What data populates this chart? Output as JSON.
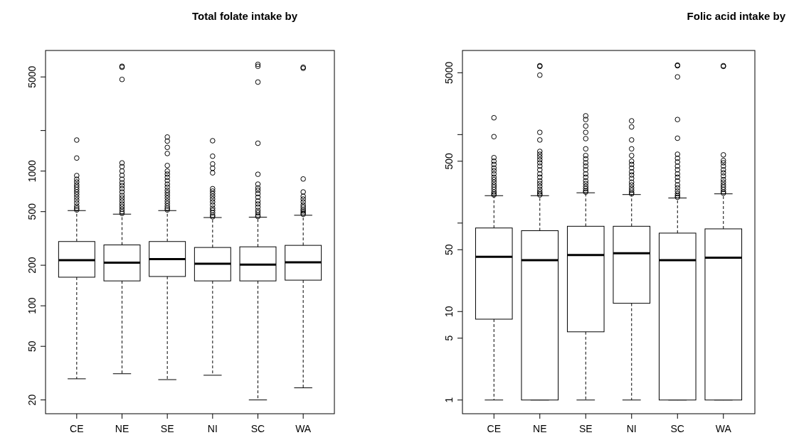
{
  "chart_data": [
    {
      "type": "box",
      "title": "Total folate intake by",
      "log": true,
      "categories": [
        "CE",
        "NE",
        "SE",
        "NI",
        "SC",
        "WA"
      ],
      "ylim": [
        15.8,
        7860
      ],
      "yticks": [
        20,
        50,
        100,
        200,
        500,
        1000,
        {
          "value": 2000,
          "label": null
        },
        5000
      ],
      "boxes": [
        {
          "low": 28.7,
          "q1": 163,
          "median": 218,
          "q3": 300,
          "high": 509,
          "outliers": [
            515,
            530,
            550,
            580,
            610,
            640,
            670,
            700,
            730,
            760,
            790,
            830,
            870,
            926,
            1250,
            1700
          ]
        },
        {
          "low": 31.3,
          "q1": 153,
          "median": 209,
          "q3": 283,
          "high": 479,
          "outliers": [
            485,
            500,
            520,
            545,
            570,
            600,
            630,
            660,
            700,
            740,
            780,
            820,
            870,
            930,
            1000,
            1080,
            1150,
            4790,
            5900,
            6000
          ]
        },
        {
          "low": 28.3,
          "q1": 165,
          "median": 222,
          "q3": 300,
          "high": 509,
          "outliers": [
            515,
            530,
            550,
            575,
            600,
            630,
            660,
            690,
            720,
            760,
            800,
            850,
            900,
            950,
            1000,
            1100,
            1350,
            1500,
            1670,
            1790
          ]
        },
        {
          "low": 30.5,
          "q1": 153,
          "median": 205,
          "q3": 271,
          "high": 452,
          "outliers": [
            458,
            470,
            490,
            510,
            530,
            560,
            590,
            620,
            650,
            680,
            710,
            740,
            970,
            1050,
            1130,
            1290,
            1680
          ]
        },
        {
          "low": 20,
          "q1": 153,
          "median": 202,
          "q3": 274,
          "high": 455,
          "outliers": [
            460,
            470,
            490,
            510,
            540,
            570,
            600,
            640,
            680,
            720,
            750,
            800,
            947,
            1610,
            4580,
            6000,
            6200
          ]
        },
        {
          "low": 24.6,
          "q1": 155,
          "median": 210,
          "q3": 281,
          "high": 470,
          "outliers": [
            478,
            490,
            505,
            520,
            540,
            560,
            590,
            620,
            650,
            700,
            874,
            5800,
            5900
          ]
        }
      ]
    },
    {
      "type": "box",
      "title": "Folic acid intake by",
      "log": true,
      "categories": [
        "CE",
        "NE",
        "SE",
        "NI",
        "SC",
        "WA"
      ],
      "ylim": [
        0.7,
        8930
      ],
      "yticks": [
        1,
        5,
        10,
        50,
        {
          "value": 100,
          "label": null
        },
        500,
        {
          "value": 1000,
          "label": null
        },
        5000
      ],
      "boxes": [
        {
          "low": 1,
          "q1": 8.2,
          "median": 41.5,
          "q3": 88,
          "high": 204,
          "outliers": [
            208,
            215,
            225,
            240,
            255,
            270,
            290,
            310,
            330,
            360,
            390,
            420,
            460,
            500,
            549,
            948,
            1550
          ]
        },
        {
          "low": 1,
          "q1": 1,
          "median": 38,
          "q3": 82,
          "high": 204,
          "outliers": [
            208,
            215,
            225,
            240,
            260,
            280,
            300,
            330,
            360,
            400,
            440,
            480,
            520,
            560,
            600,
            646,
            870,
            1060,
            4700,
            5900,
            6000
          ]
        },
        {
          "low": 1,
          "q1": 5.9,
          "median": 43.5,
          "q3": 92,
          "high": 220,
          "outliers": [
            224,
            232,
            245,
            260,
            280,
            300,
            330,
            360,
            400,
            440,
            480,
            530,
            580,
            690,
            900,
            1060,
            1250,
            1480,
            1630
          ]
        },
        {
          "low": 1,
          "q1": 12.4,
          "median": 45.5,
          "q3": 92,
          "high": 210,
          "outliers": [
            214,
            222,
            235,
            250,
            270,
            290,
            320,
            350,
            380,
            420,
            460,
            500,
            580,
            690,
            870,
            1220,
            1430
          ]
        },
        {
          "low": 1,
          "q1": 1,
          "median": 38,
          "q3": 77,
          "high": 192,
          "outliers": [
            196,
            204,
            215,
            230,
            250,
            270,
            300,
            330,
            360,
            400,
            440,
            490,
            540,
            600,
            910,
            1480,
            4490,
            6000,
            6100
          ]
        },
        {
          "low": 1,
          "q1": 1,
          "median": 40.6,
          "q3": 86,
          "high": 214,
          "outliers": [
            218,
            226,
            240,
            255,
            270,
            290,
            310,
            340,
            370,
            400,
            440,
            480,
            510,
            590,
            5900,
            6000
          ]
        }
      ]
    }
  ]
}
